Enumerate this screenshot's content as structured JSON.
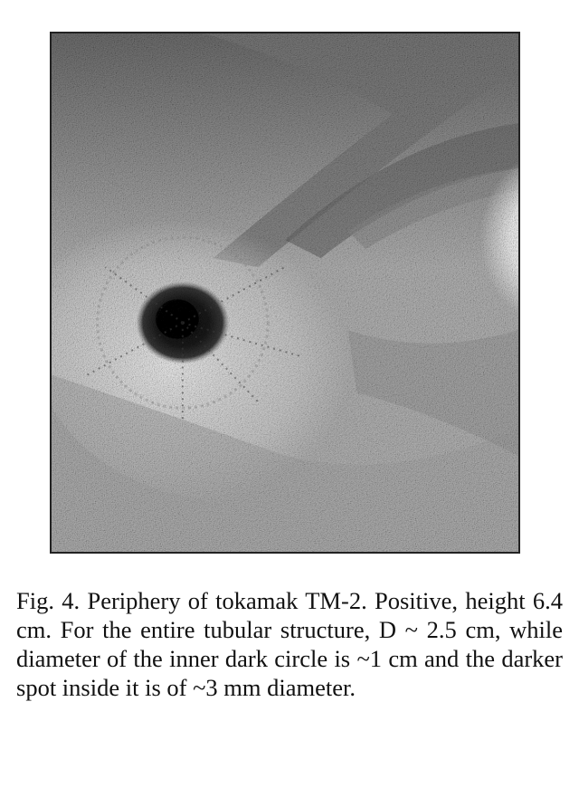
{
  "figure": {
    "image_description_icon": "grainy-photo-icon"
  },
  "caption": {
    "text": "Fig. 4. Periphery of tokamak TM-2. Positive, height 6.4 cm. For the entire tubular structure, D ~ 2.5 cm, while diameter of the inner dark circle is ~1 cm and the darker spot inside it is of ~3 mm diameter."
  }
}
